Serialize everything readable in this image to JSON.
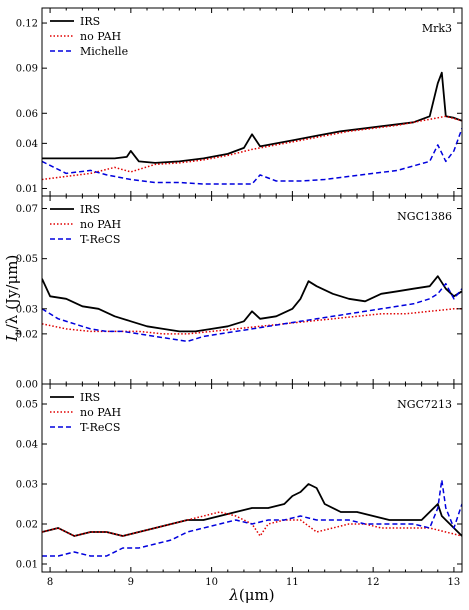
{
  "chart_data": {
    "type": "line",
    "ylabel": "Iν/λ (Jy/μm)",
    "ylabel_parts": {
      "base": "I",
      "sub": "ν",
      "rest": "/λ (Jy/μm)"
    },
    "xlabel": "λ(μm)",
    "xlabel_parts": {
      "sym": "λ",
      "rest": "(μm)"
    },
    "xlim": [
      7.9,
      13.1
    ],
    "xticks": [
      8,
      9,
      10,
      11,
      12,
      13
    ],
    "xtick_labels": [
      "8",
      "9",
      "10",
      "11",
      "12",
      "13"
    ],
    "panels": [
      {
        "label": "Mrk3",
        "ylim": [
          0.005,
          0.13
        ],
        "yticks": [
          0.01,
          0.04,
          0.06,
          0.09,
          0.12
        ],
        "ytick_labels": [
          "0.01",
          "0.04",
          "0.06",
          "0.09",
          "0.12"
        ],
        "legend_loc": "top-left",
        "series": [
          {
            "name": "IRS",
            "color": "#000000",
            "style": "solid",
            "x": [
              7.9,
              8.2,
              8.5,
              8.8,
              8.95,
              9.0,
              9.1,
              9.3,
              9.6,
              9.9,
              10.2,
              10.4,
              10.5,
              10.6,
              10.8,
              11.0,
              11.3,
              11.6,
              11.9,
              12.2,
              12.5,
              12.7,
              12.8,
              12.85,
              12.9,
              13.0,
              13.1
            ],
            "y": [
              0.03,
              0.03,
              0.03,
              0.03,
              0.031,
              0.035,
              0.028,
              0.027,
              0.028,
              0.03,
              0.033,
              0.037,
              0.046,
              0.038,
              0.04,
              0.042,
              0.045,
              0.048,
              0.05,
              0.052,
              0.054,
              0.058,
              0.08,
              0.087,
              0.058,
              0.057,
              0.055
            ]
          },
          {
            "name": "no PAH",
            "color": "#e00000",
            "style": "dotted",
            "x": [
              7.9,
              8.2,
              8.5,
              8.8,
              9.0,
              9.3,
              9.6,
              9.9,
              10.2,
              10.5,
              10.8,
              11.1,
              11.4,
              11.7,
              12.0,
              12.3,
              12.6,
              12.9,
              13.1
            ],
            "y": [
              0.016,
              0.018,
              0.02,
              0.024,
              0.021,
              0.026,
              0.027,
              0.029,
              0.032,
              0.036,
              0.039,
              0.042,
              0.045,
              0.048,
              0.05,
              0.052,
              0.055,
              0.058,
              0.055
            ]
          },
          {
            "name": "Michelle",
            "color": "#0000dd",
            "style": "dashed",
            "x": [
              7.9,
              8.2,
              8.5,
              8.7,
              9.0,
              9.3,
              9.6,
              9.9,
              10.2,
              10.5,
              10.6,
              10.8,
              11.1,
              11.4,
              11.7,
              12.0,
              12.3,
              12.5,
              12.7,
              12.8,
              12.9,
              13.0,
              13.1
            ],
            "y": [
              0.028,
              0.02,
              0.022,
              0.019,
              0.016,
              0.014,
              0.014,
              0.013,
              0.013,
              0.013,
              0.019,
              0.015,
              0.015,
              0.016,
              0.018,
              0.02,
              0.022,
              0.025,
              0.028,
              0.039,
              0.028,
              0.035,
              0.05
            ]
          }
        ]
      },
      {
        "label": "NGC1386",
        "ylim": [
          0.0,
          0.075
        ],
        "yticks": [
          0.0,
          0.02,
          0.03,
          0.05,
          0.07
        ],
        "ytick_labels": [
          "0.00",
          "0.02",
          "0.03",
          "0.05",
          "0.07"
        ],
        "legend_loc": "top-left",
        "series": [
          {
            "name": "IRS",
            "color": "#000000",
            "style": "solid",
            "x": [
              7.9,
              8.0,
              8.2,
              8.4,
              8.6,
              8.8,
              9.0,
              9.2,
              9.4,
              9.6,
              9.8,
              10.0,
              10.2,
              10.4,
              10.5,
              10.6,
              10.8,
              11.0,
              11.1,
              11.2,
              11.3,
              11.5,
              11.7,
              11.9,
              12.1,
              12.3,
              12.5,
              12.7,
              12.8,
              12.9,
              13.0,
              13.1
            ],
            "y": [
              0.042,
              0.035,
              0.034,
              0.031,
              0.03,
              0.027,
              0.025,
              0.023,
              0.022,
              0.021,
              0.021,
              0.022,
              0.023,
              0.025,
              0.029,
              0.026,
              0.027,
              0.03,
              0.034,
              0.041,
              0.039,
              0.036,
              0.034,
              0.033,
              0.036,
              0.037,
              0.038,
              0.039,
              0.043,
              0.038,
              0.035,
              0.037
            ]
          },
          {
            "name": "no PAH",
            "color": "#e00000",
            "style": "dotted",
            "x": [
              7.9,
              8.2,
              8.5,
              8.8,
              9.1,
              9.4,
              9.7,
              10.0,
              10.3,
              10.6,
              10.9,
              11.2,
              11.5,
              11.8,
              12.1,
              12.4,
              12.7,
              13.0,
              13.1
            ],
            "y": [
              0.024,
              0.022,
              0.021,
              0.021,
              0.021,
              0.02,
              0.02,
              0.021,
              0.022,
              0.023,
              0.024,
              0.025,
              0.026,
              0.027,
              0.028,
              0.028,
              0.029,
              0.03,
              0.03
            ]
          },
          {
            "name": "T-ReCS",
            "color": "#0000dd",
            "style": "dashed",
            "x": [
              7.9,
              8.1,
              8.3,
              8.5,
              8.7,
              8.9,
              9.1,
              9.3,
              9.5,
              9.7,
              9.9,
              10.1,
              10.3,
              10.5,
              10.7,
              10.9,
              11.1,
              11.3,
              11.5,
              11.7,
              11.9,
              12.1,
              12.3,
              12.5,
              12.7,
              12.8,
              12.9,
              13.0,
              13.1
            ],
            "y": [
              0.03,
              0.026,
              0.024,
              0.022,
              0.021,
              0.021,
              0.02,
              0.019,
              0.018,
              0.017,
              0.019,
              0.02,
              0.021,
              0.022,
              0.023,
              0.024,
              0.025,
              0.026,
              0.027,
              0.028,
              0.029,
              0.03,
              0.031,
              0.032,
              0.034,
              0.036,
              0.04,
              0.034,
              0.038
            ]
          }
        ]
      },
      {
        "label": "NGC7213",
        "ylim": [
          0.008,
          0.055
        ],
        "yticks": [
          0.01,
          0.02,
          0.03,
          0.04,
          0.05
        ],
        "ytick_labels": [
          "0.01",
          "0.02",
          "0.03",
          "0.04",
          "0.05"
        ],
        "legend_loc": "top-left",
        "series": [
          {
            "name": "IRS",
            "color": "#000000",
            "style": "solid",
            "x": [
              7.9,
              8.1,
              8.3,
              8.5,
              8.7,
              8.9,
              9.1,
              9.3,
              9.5,
              9.7,
              9.9,
              10.1,
              10.3,
              10.5,
              10.7,
              10.9,
              11.0,
              11.1,
              11.2,
              11.3,
              11.4,
              11.6,
              11.8,
              12.0,
              12.2,
              12.4,
              12.6,
              12.8,
              12.85,
              12.9,
              13.0,
              13.1
            ],
            "y": [
              0.018,
              0.019,
              0.017,
              0.018,
              0.018,
              0.017,
              0.018,
              0.019,
              0.02,
              0.021,
              0.021,
              0.022,
              0.023,
              0.024,
              0.024,
              0.025,
              0.027,
              0.028,
              0.03,
              0.029,
              0.025,
              0.023,
              0.023,
              0.022,
              0.021,
              0.021,
              0.021,
              0.025,
              0.022,
              0.021,
              0.019,
              0.017
            ]
          },
          {
            "name": "no PAH",
            "color": "#e00000",
            "style": "dotted",
            "x": [
              7.9,
              8.1,
              8.3,
              8.5,
              8.7,
              8.9,
              9.1,
              9.3,
              9.5,
              9.7,
              9.9,
              10.1,
              10.3,
              10.5,
              10.6,
              10.7,
              10.9,
              11.1,
              11.3,
              11.5,
              11.7,
              11.9,
              12.1,
              12.3,
              12.5,
              12.7,
              12.9,
              13.1
            ],
            "y": [
              0.018,
              0.019,
              0.017,
              0.018,
              0.018,
              0.017,
              0.018,
              0.019,
              0.02,
              0.021,
              0.022,
              0.023,
              0.022,
              0.02,
              0.017,
              0.02,
              0.021,
              0.021,
              0.018,
              0.019,
              0.02,
              0.02,
              0.019,
              0.019,
              0.019,
              0.019,
              0.018,
              0.017
            ]
          },
          {
            "name": "T-ReCS",
            "color": "#0000dd",
            "style": "dashed",
            "x": [
              7.9,
              8.1,
              8.3,
              8.5,
              8.7,
              8.9,
              9.1,
              9.3,
              9.5,
              9.7,
              9.9,
              10.1,
              10.3,
              10.5,
              10.7,
              10.9,
              11.1,
              11.3,
              11.5,
              11.7,
              11.9,
              12.1,
              12.3,
              12.5,
              12.7,
              12.8,
              12.85,
              12.9,
              13.0,
              13.1
            ],
            "y": [
              0.012,
              0.012,
              0.013,
              0.012,
              0.012,
              0.014,
              0.014,
              0.015,
              0.016,
              0.018,
              0.019,
              0.02,
              0.021,
              0.02,
              0.021,
              0.021,
              0.022,
              0.021,
              0.021,
              0.021,
              0.02,
              0.02,
              0.02,
              0.02,
              0.019,
              0.024,
              0.031,
              0.024,
              0.019,
              0.025
            ]
          }
        ]
      }
    ]
  }
}
